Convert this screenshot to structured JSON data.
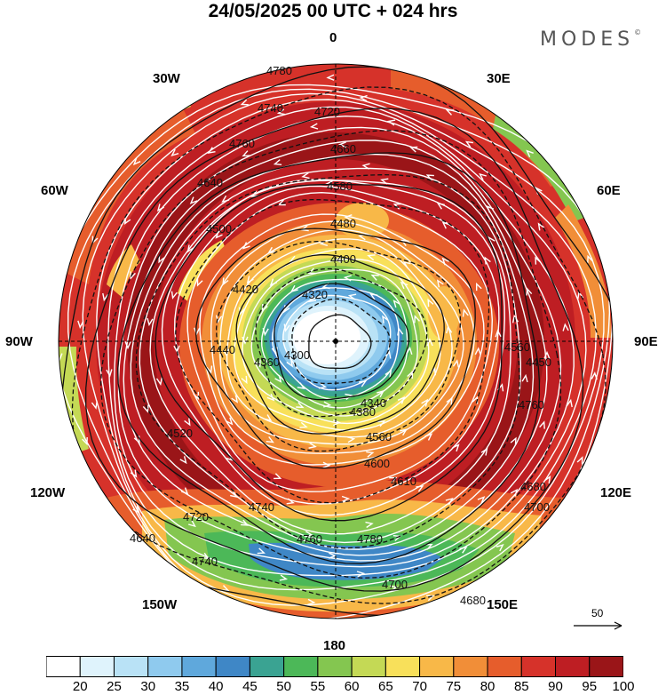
{
  "title": "24/05/2025  00 UTC  + 024 hrs",
  "brand": "MODES",
  "brand_mark": "©",
  "longitudes": {
    "n": "0",
    "s": "180",
    "w90": "90W",
    "e90": "90E",
    "w30": "30W",
    "e30": "30E",
    "w60": "60W",
    "e60": "60E",
    "w120": "120W",
    "e120": "120E",
    "w150": "150W",
    "e150": "150E"
  },
  "contour_labels": [
    "4780",
    "4740",
    "4760",
    "4720",
    "4660",
    "4640",
    "4580",
    "4500",
    "4480",
    "4400",
    "4420",
    "4320",
    "4300",
    "4360",
    "4440",
    "4340",
    "4380",
    "4520",
    "4560",
    "4600",
    "4610",
    "4680",
    "4700",
    "4720",
    "4740",
    "4760",
    "4780",
    "4740",
    "4700",
    "4680",
    "4640",
    "4760",
    "4560",
    "4450"
  ],
  "wind_reference": {
    "label": "50"
  },
  "colorbar": {
    "ticks": [
      "20",
      "25",
      "30",
      "35",
      "40",
      "45",
      "50",
      "55",
      "60",
      "65",
      "70",
      "75",
      "80",
      "85",
      "90",
      "95",
      "100"
    ],
    "colors": [
      "#ffffff",
      "#dff3fc",
      "#b9e2f6",
      "#8fcaee",
      "#5fa8dc",
      "#3f87c6",
      "#3aa392",
      "#4cb858",
      "#84c650",
      "#c4d955",
      "#f8e05a",
      "#f8b848",
      "#f18e38",
      "#e65d2c",
      "#d6322a",
      "#be1e23",
      "#9a1518"
    ]
  },
  "colors": {
    "bg": "#ffffff",
    "contour": "#111111",
    "stream": "#ffffff"
  }
}
